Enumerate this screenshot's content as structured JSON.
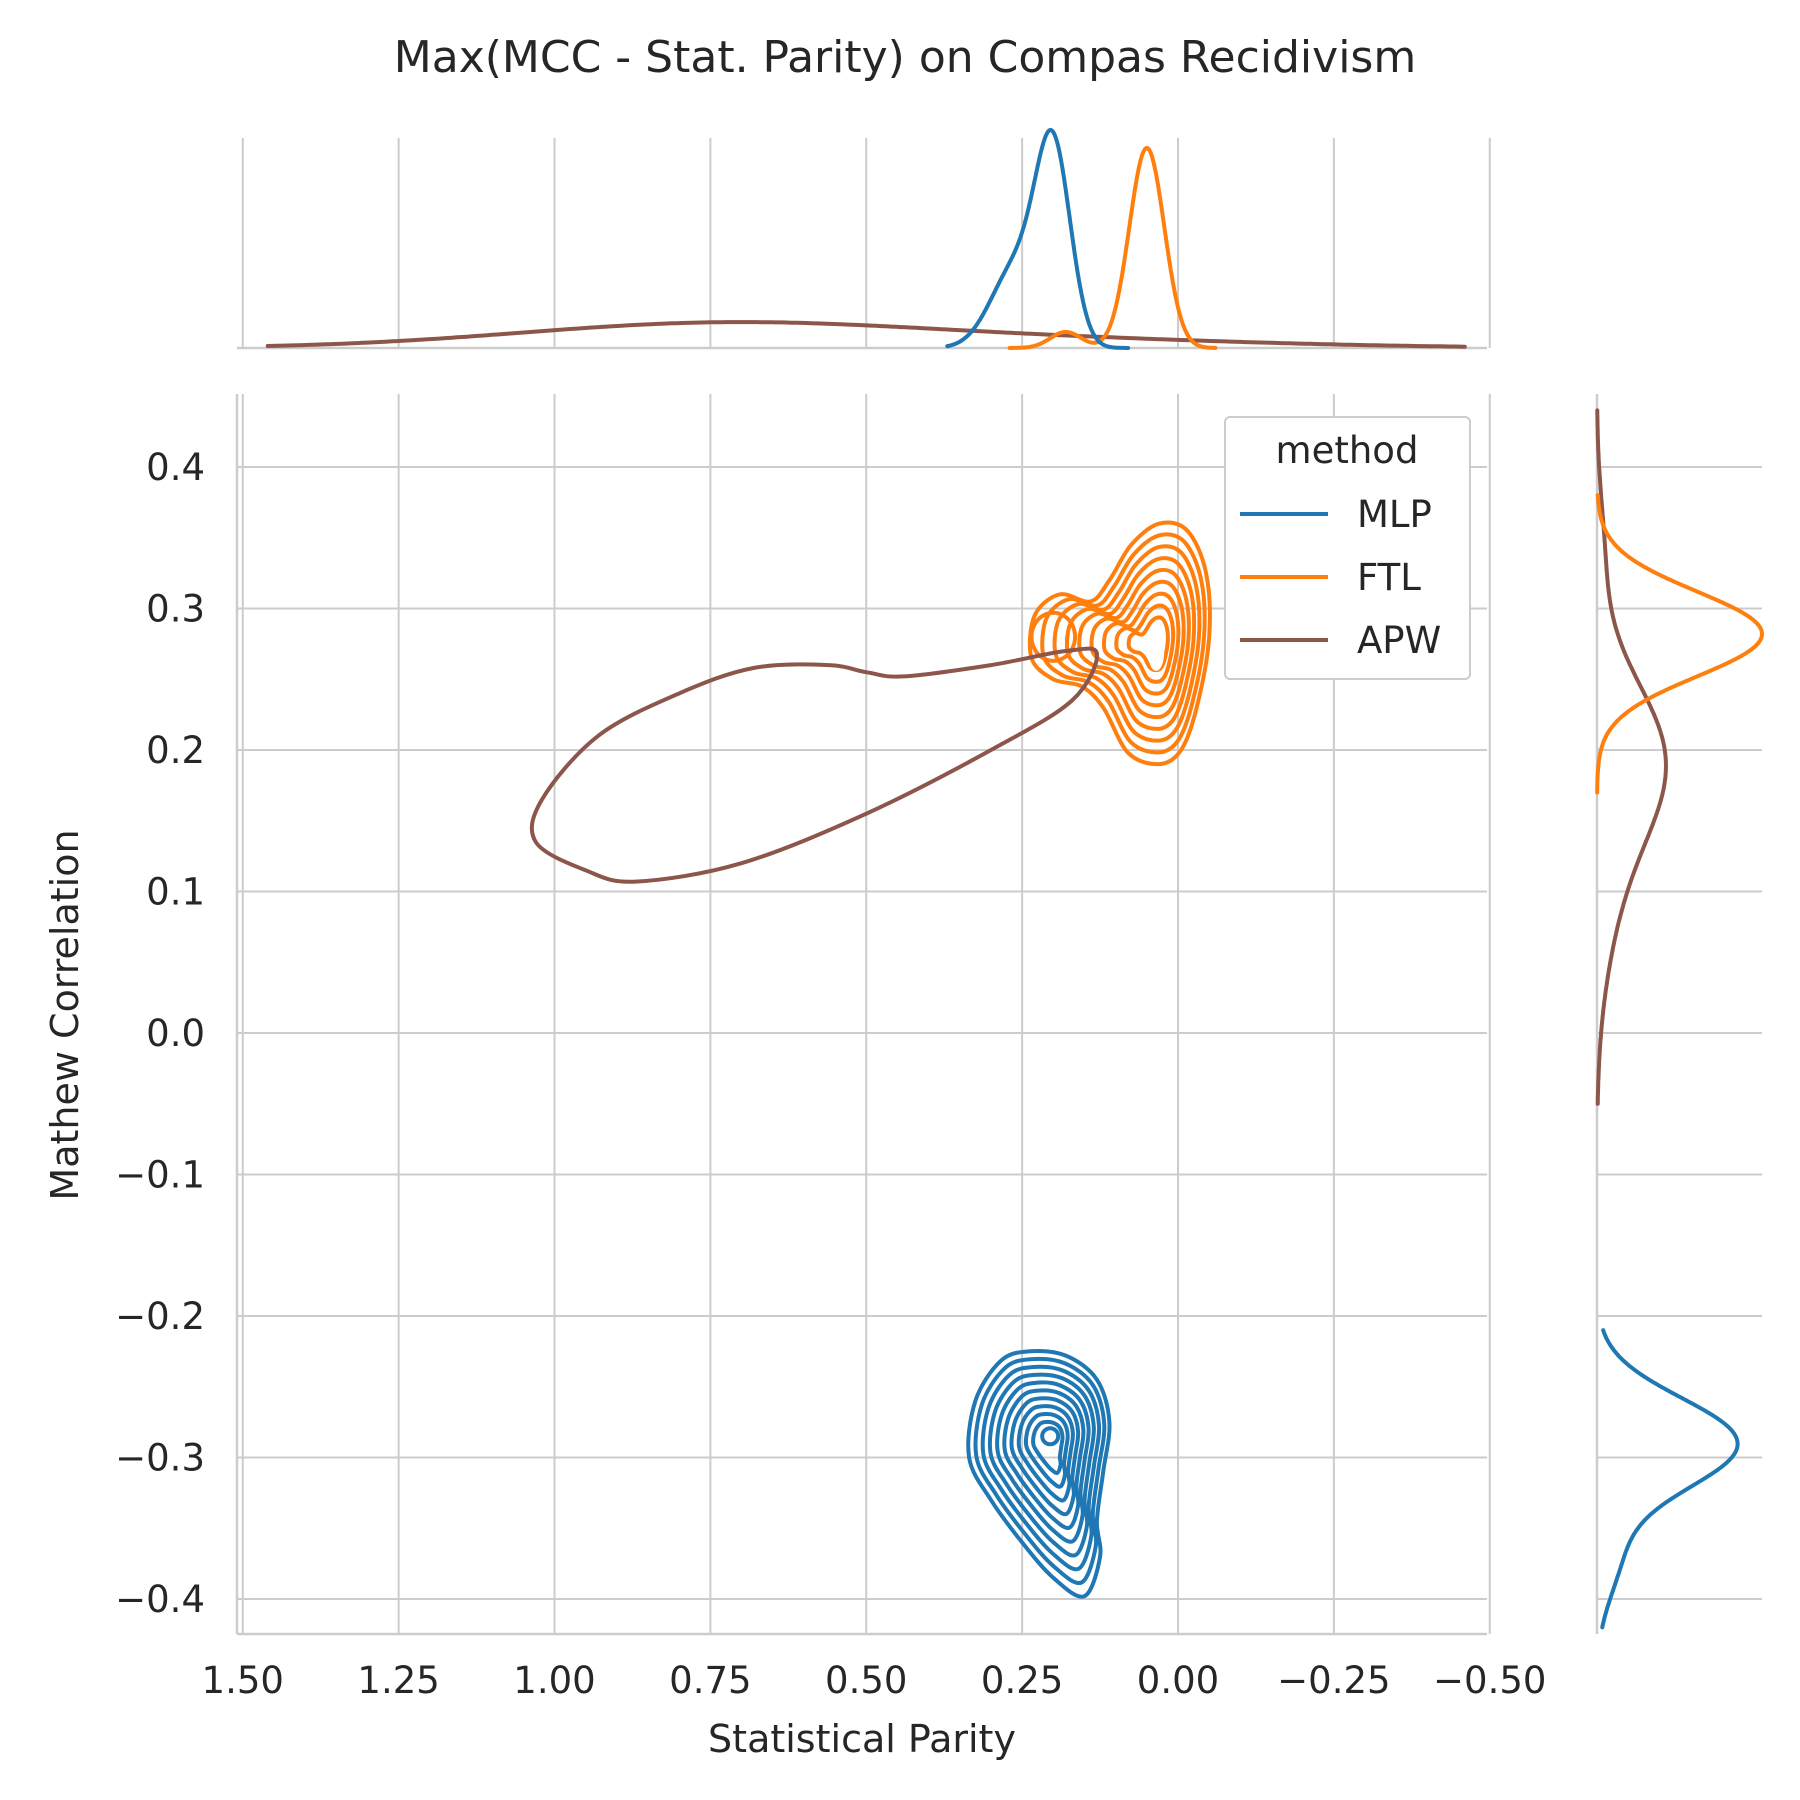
{
  "chart_data": {
    "type": "kde-joint",
    "title": "Max(MCC - Stat. Parity) on Compas Recidivism",
    "xlabel": "Statistical Parity",
    "ylabel": "Mathew Correlation",
    "xlim": [
      1.5,
      -0.5
    ],
    "ylim": [
      -0.425,
      0.45
    ],
    "x_ticks": [
      1.5,
      1.25,
      1.0,
      0.75,
      0.5,
      0.25,
      0.0,
      -0.25,
      -0.5
    ],
    "x_tick_labels": [
      "1.50",
      "1.25",
      "1.00",
      "0.75",
      "0.50",
      "0.25",
      "0.00",
      "−0.25",
      "−0.50"
    ],
    "y_ticks": [
      0.4,
      0.3,
      0.2,
      0.1,
      0.0,
      -0.1,
      -0.2,
      -0.3,
      -0.4
    ],
    "y_tick_labels": [
      "0.4",
      "0.3",
      "0.2",
      "0.1",
      "0.0",
      "−0.1",
      "−0.2",
      "−0.3",
      "−0.4"
    ],
    "grid": true,
    "legend": {
      "title": "method",
      "placement": "top-right"
    },
    "series": [
      {
        "name": "MLP",
        "color": "#1f77b4",
        "contour_center": [
          0.205,
          -0.29
        ],
        "contour_outer_x": [
          0.34,
          0.1
        ],
        "contour_outer_y": [
          -0.4,
          -0.225
        ],
        "contour_levels": 10,
        "marginal_x_peak": 0.2,
        "marginal_x_range": [
          0.37,
          0.08
        ],
        "marginal_y_peak": -0.288,
        "marginal_y_range": [
          -0.42,
          -0.21
        ]
      },
      {
        "name": "FTL",
        "color": "#ff7f0e",
        "contour_center": [
          0.04,
          0.275
        ],
        "contour_outer_x": [
          0.24,
          -0.05
        ],
        "contour_outer_y": [
          0.19,
          0.36
        ],
        "contour_levels": 10,
        "marginal_x_peak": 0.05,
        "marginal_x_range": [
          0.27,
          -0.06
        ],
        "marginal_y_peak": 0.282,
        "marginal_y_range": [
          0.17,
          0.38
        ]
      },
      {
        "name": "APW",
        "color": "#8c564b",
        "contour_center": [
          0.6,
          0.2
        ],
        "contour_outer_x": [
          1.03,
          0.12
        ],
        "contour_outer_y": [
          0.105,
          0.27
        ],
        "contour_levels": 1,
        "marginal_x_peak": 0.75,
        "marginal_x_range": [
          1.46,
          -0.46
        ],
        "marginal_y_peak": 0.195,
        "marginal_y_range": [
          -0.05,
          0.44
        ]
      }
    ]
  }
}
